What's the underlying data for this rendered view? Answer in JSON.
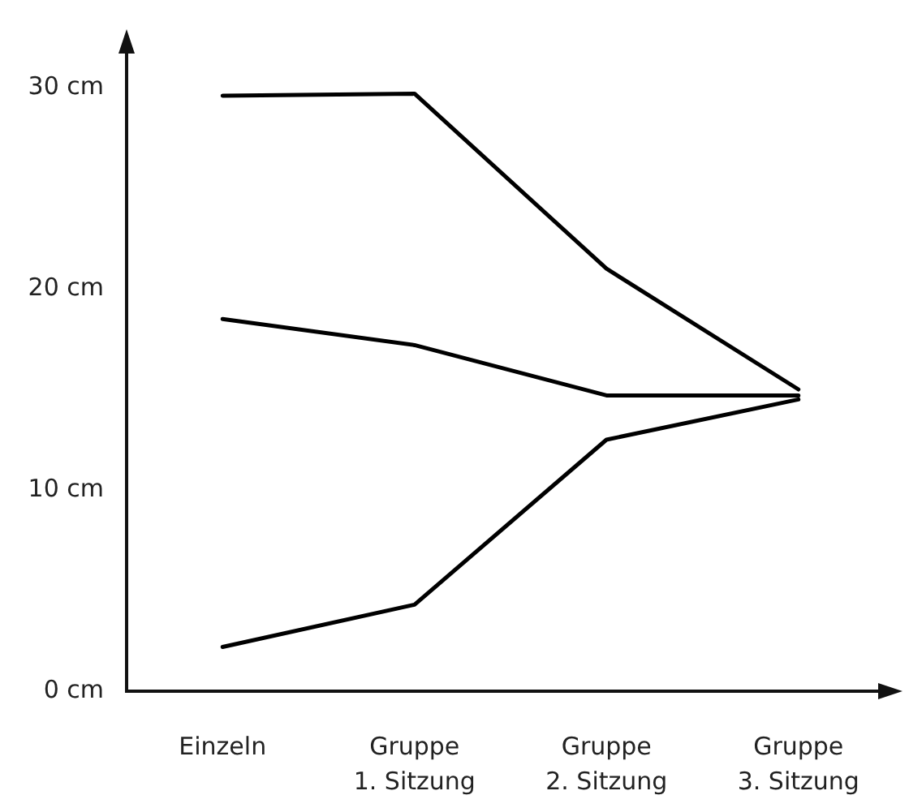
{
  "chart_data": {
    "type": "line",
    "categories": [
      "Einzeln",
      "Gruppe\n1. Sitzung",
      "Gruppe\n2. Sitzung",
      "Gruppe\n3. Sitzung"
    ],
    "series": [
      {
        "color": "#000000",
        "values": [
          29.6,
          29.7,
          21.0,
          15.0
        ]
      },
      {
        "color": "#000000",
        "values": [
          18.5,
          17.2,
          14.7,
          14.7
        ]
      },
      {
        "color": "#000000",
        "values": [
          2.2,
          4.3,
          12.5,
          14.5
        ]
      }
    ],
    "ylim": [
      0,
      32.5
    ],
    "yticks": [
      {
        "value": 0,
        "label": "0 cm"
      },
      {
        "value": 10,
        "label": "10 cm"
      },
      {
        "value": 20,
        "label": "20 cm"
      },
      {
        "value": 30,
        "label": "30 cm"
      }
    ],
    "grid": false,
    "legend": false,
    "marker": "none",
    "line_style": "solid"
  }
}
